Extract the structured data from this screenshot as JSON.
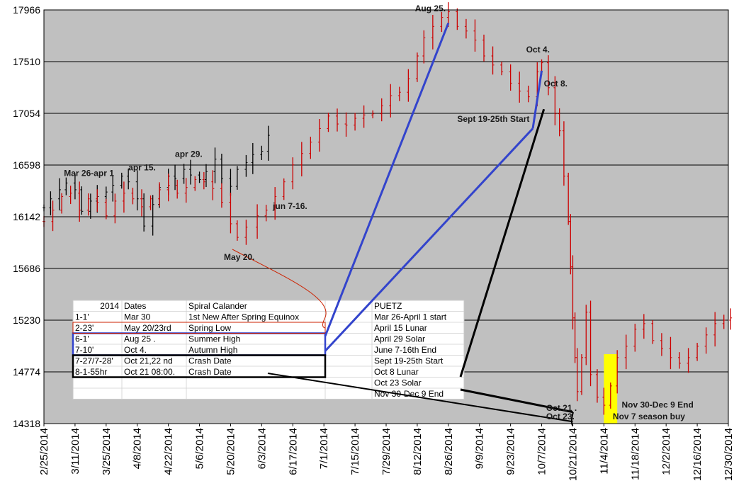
{
  "chart_data": {
    "type": "line",
    "title": "",
    "xlabel": "",
    "ylabel": "",
    "ylim": [
      14318,
      17966
    ],
    "grid": true,
    "y_ticks": [
      "17966",
      "17510",
      "17054",
      "16598",
      "16142",
      "15686",
      "15230",
      "14774",
      "14318"
    ],
    "x_ticks": [
      "2/25/2014",
      "3/11/2014",
      "3/25/2014",
      "4/8/2014",
      "4/22/2014",
      "5/6/2014",
      "5/20/2014",
      "6/3/2014",
      "6/17/2014",
      "7/1/2014",
      "7/15/2014",
      "7/29/2014",
      "8/12/2014",
      "8/26/2014",
      "9/9/2014",
      "9/23/2014",
      "10/7/2014",
      "10/21/2014",
      "11/4/2014",
      "11/18/2014",
      "12/2/2014",
      "12/16/2014",
      "12/30/2014"
    ],
    "series": [
      {
        "color": "#000000",
        "points": [
          [
            "2014-02-25",
            16220
          ],
          [
            "2014-02-28",
            16300
          ],
          [
            "2014-03-04",
            16380
          ],
          [
            "2014-03-07",
            16440
          ],
          [
            "2014-03-11",
            16380
          ],
          [
            "2014-03-14",
            16190
          ],
          [
            "2014-03-18",
            16280
          ],
          [
            "2014-03-21",
            16320
          ],
          [
            "2014-03-25",
            16360
          ],
          [
            "2014-03-28",
            16420
          ],
          [
            "2014-04-01",
            16500
          ],
          [
            "2014-04-04",
            16450
          ],
          [
            "2014-04-08",
            16300
          ],
          [
            "2014-04-11",
            16060
          ],
          [
            "2014-04-15",
            16250
          ],
          [
            "2014-04-18",
            16400
          ],
          [
            "2014-04-22",
            16500
          ],
          [
            "2014-04-25",
            16480
          ],
          [
            "2014-04-29",
            16560
          ],
          [
            "2014-05-02",
            16510
          ],
          [
            "2014-05-06",
            16470
          ],
          [
            "2014-05-09",
            16540
          ],
          [
            "2014-05-13",
            16650
          ],
          [
            "2014-05-16",
            16480
          ],
          [
            "2014-05-20",
            16410
          ],
          [
            "2014-05-23",
            16560
          ],
          [
            "2014-05-27",
            16620
          ],
          [
            "2014-05-30",
            16690
          ],
          [
            "2014-06-03",
            16720
          ],
          [
            "2014-06-06",
            16860
          ]
        ]
      },
      {
        "color": "#cc0000",
        "points": [
          [
            "2014-02-25",
            16100
          ],
          [
            "2014-03-01",
            16200
          ],
          [
            "2014-03-05",
            16320
          ],
          [
            "2014-03-09",
            16350
          ],
          [
            "2014-03-13",
            16200
          ],
          [
            "2014-03-17",
            16300
          ],
          [
            "2014-03-21",
            16270
          ],
          [
            "2014-03-25",
            16150
          ],
          [
            "2014-03-29",
            16280
          ],
          [
            "2014-04-02",
            16350
          ],
          [
            "2014-04-06",
            16300
          ],
          [
            "2014-04-10",
            16230
          ],
          [
            "2014-04-14",
            16300
          ],
          [
            "2014-04-18",
            16380
          ],
          [
            "2014-04-22",
            16420
          ],
          [
            "2014-04-26",
            16350
          ],
          [
            "2014-04-30",
            16400
          ],
          [
            "2014-05-04",
            16470
          ],
          [
            "2014-05-08",
            16450
          ],
          [
            "2014-05-12",
            16390
          ],
          [
            "2014-05-16",
            16270
          ],
          [
            "2014-05-20",
            16080
          ],
          [
            "2014-05-23",
            15960
          ],
          [
            "2014-05-27",
            16050
          ],
          [
            "2014-06-01",
            16150
          ],
          [
            "2014-06-05",
            16200
          ],
          [
            "2014-06-09",
            16320
          ],
          [
            "2014-06-13",
            16450
          ],
          [
            "2014-06-17",
            16600
          ],
          [
            "2014-06-21",
            16700
          ],
          [
            "2014-06-25",
            16800
          ],
          [
            "2014-06-29",
            16920
          ],
          [
            "2014-07-03",
            17030
          ],
          [
            "2014-07-07",
            16960
          ],
          [
            "2014-07-11",
            16950
          ],
          [
            "2014-07-15",
            17010
          ],
          [
            "2014-07-19",
            17040
          ],
          [
            "2014-07-23",
            17050
          ],
          [
            "2014-07-27",
            17120
          ],
          [
            "2014-07-31",
            17210
          ],
          [
            "2014-08-04",
            17240
          ],
          [
            "2014-08-08",
            17360
          ],
          [
            "2014-08-12",
            17560
          ],
          [
            "2014-08-15",
            17720
          ],
          [
            "2014-08-19",
            17820
          ],
          [
            "2014-08-23",
            17900
          ],
          [
            "2014-08-26",
            17950
          ],
          [
            "2014-08-30",
            17820
          ],
          [
            "2014-09-03",
            17780
          ],
          [
            "2014-09-07",
            17700
          ],
          [
            "2014-09-11",
            17560
          ],
          [
            "2014-09-15",
            17480
          ],
          [
            "2014-09-19",
            17420
          ],
          [
            "2014-09-23",
            17320
          ],
          [
            "2014-09-27",
            17250
          ],
          [
            "2014-10-01",
            17200
          ],
          [
            "2014-10-05",
            17420
          ],
          [
            "2014-10-07",
            17500
          ],
          [
            "2014-10-10",
            17280
          ],
          [
            "2014-10-13",
            17050
          ],
          [
            "2014-10-15",
            16900
          ],
          [
            "2014-10-17",
            16500
          ],
          [
            "2014-10-19",
            16100
          ],
          [
            "2014-10-20",
            15700
          ],
          [
            "2014-10-21",
            15250
          ],
          [
            "2014-10-22",
            14900
          ],
          [
            "2014-10-23",
            14600
          ],
          [
            "2014-10-25",
            14900
          ],
          [
            "2014-10-27",
            15300
          ],
          [
            "2014-10-29",
            14750
          ],
          [
            "2014-11-01",
            14550
          ],
          [
            "2014-11-04",
            14480
          ],
          [
            "2014-11-07",
            14650
          ],
          [
            "2014-11-10",
            14900
          ],
          [
            "2014-11-14",
            15000
          ],
          [
            "2014-11-18",
            15150
          ],
          [
            "2014-11-22",
            15200
          ],
          [
            "2014-11-26",
            15050
          ],
          [
            "2014-11-30",
            14980
          ],
          [
            "2014-12-04",
            14900
          ],
          [
            "2014-12-08",
            14850
          ],
          [
            "2014-12-12",
            14900
          ],
          [
            "2014-12-16",
            15000
          ],
          [
            "2014-12-20",
            15100
          ],
          [
            "2014-12-24",
            15200
          ],
          [
            "2014-12-28",
            15230
          ],
          [
            "2014-12-31",
            15250
          ]
        ]
      }
    ],
    "annotations": [
      "Aug 25.",
      "Oct 4.",
      "Oct 8.",
      "Sept 19-25th Start",
      "apr 29.",
      "apr 15.",
      "Mar 26-apr 1",
      "jun 7-16.",
      "May 20.",
      "Oct 21 .",
      "Oct 23.",
      "Nov 30-Dec 9 End",
      "Nov 7 season buy"
    ],
    "table": {
      "header": [
        "2014",
        "Dates",
        "Spiral Calander",
        "",
        "PUETZ"
      ],
      "rows": [
        [
          "1-1'",
          "Mar 30",
          "1st New After Spring Equinox",
          "",
          "Mar 26-April 1 start"
        ],
        [
          "2-23'",
          "May 20/23rd",
          "Spring Low",
          "",
          "April 15 Lunar"
        ],
        [
          "6-1'",
          "Aug 25 .",
          "Summer High",
          "",
          "April 29 Solar"
        ],
        [
          "7-10'",
          "Oct 4.",
          "Autumn High",
          "",
          "June 7-16th End"
        ],
        [
          "7-27/7-28'",
          "Oct 21,22 nd",
          "Crash Date",
          "",
          "Sept 19-25th Start"
        ],
        [
          "8-1-55hr",
          "Oct 21 08:00.",
          "Crash Date",
          "",
          "Oct 8 Lunar"
        ],
        [
          "",
          "",
          "",
          "",
          "Oct 23 Solar"
        ],
        [
          "",
          "",
          "",
          "",
          "Nov 30-Dec 9 End"
        ]
      ]
    },
    "colors": {
      "plot_bg": "#c0c0c0",
      "grid": "#000000",
      "highlight": "#ffff00",
      "blue_lines": "#3344cc",
      "black_lines": "#000000",
      "red_curve": "#cc2200"
    }
  }
}
